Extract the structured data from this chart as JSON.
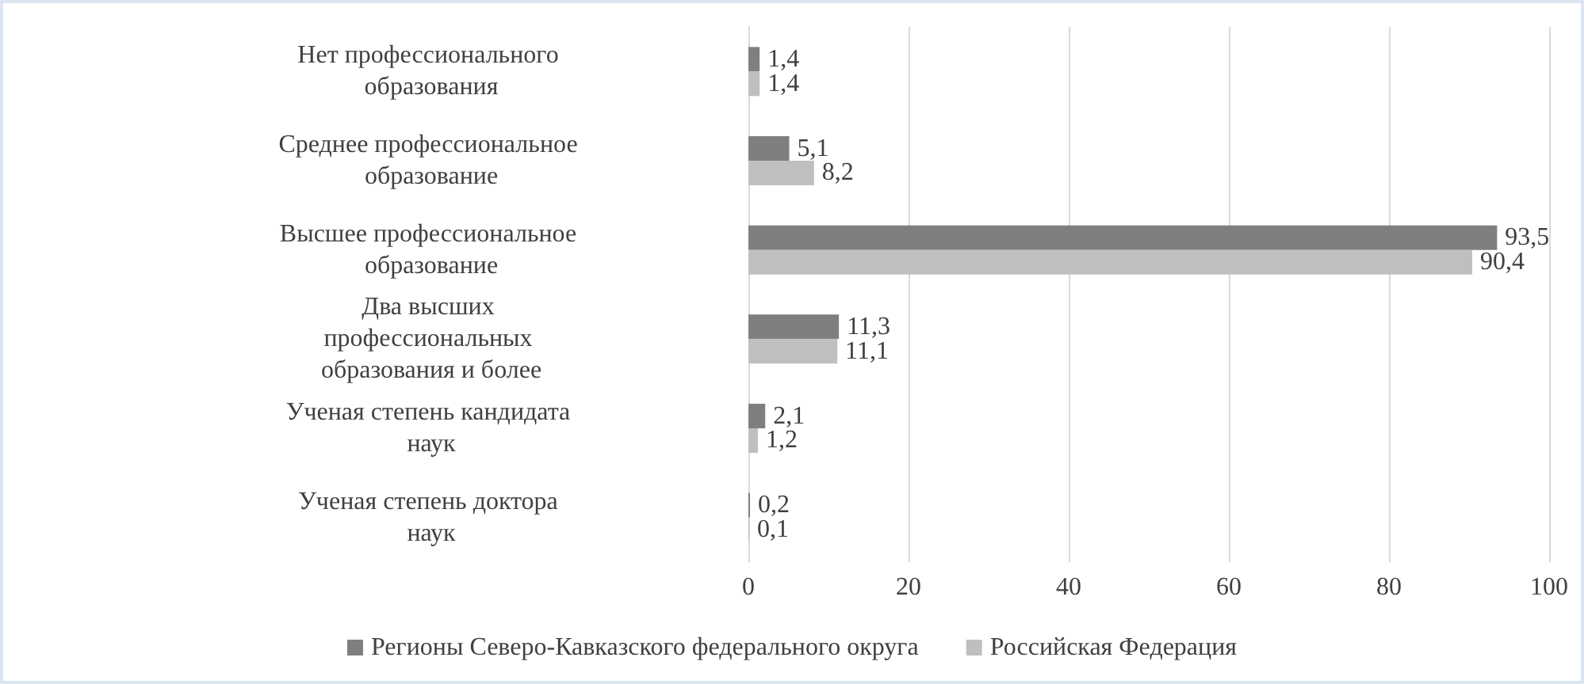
{
  "chart_data": {
    "type": "bar",
    "orientation": "horizontal",
    "categories": [
      "Нет профессионального образования",
      "Среднее профессиональное образование",
      "Высшее профессиональное образование",
      "Два высших профессиональных образования и более",
      "Ученая степень кандидата наук",
      "Ученая степень доктора наук"
    ],
    "series": [
      {
        "name": "Регионы Северо-Кавказского федерального округа",
        "color": "#7f7f7f",
        "values": [
          1.4,
          5.1,
          93.5,
          11.3,
          2.1,
          0.2
        ],
        "value_labels": [
          "1,4",
          "5,1",
          "93,5",
          "11,3",
          "2,1",
          "0,2"
        ]
      },
      {
        "name": "Российская Федерация",
        "color": "#bfbfbf",
        "values": [
          1.4,
          8.2,
          90.4,
          11.1,
          1.2,
          0.1
        ],
        "value_labels": [
          "1,4",
          "8,2",
          "90,4",
          "11,1",
          "1,2",
          "0,1"
        ]
      }
    ],
    "xlim": [
      0,
      100
    ],
    "xticks": [
      0,
      20,
      40,
      60,
      80,
      100
    ],
    "grid": "x",
    "legend": "bottom"
  }
}
